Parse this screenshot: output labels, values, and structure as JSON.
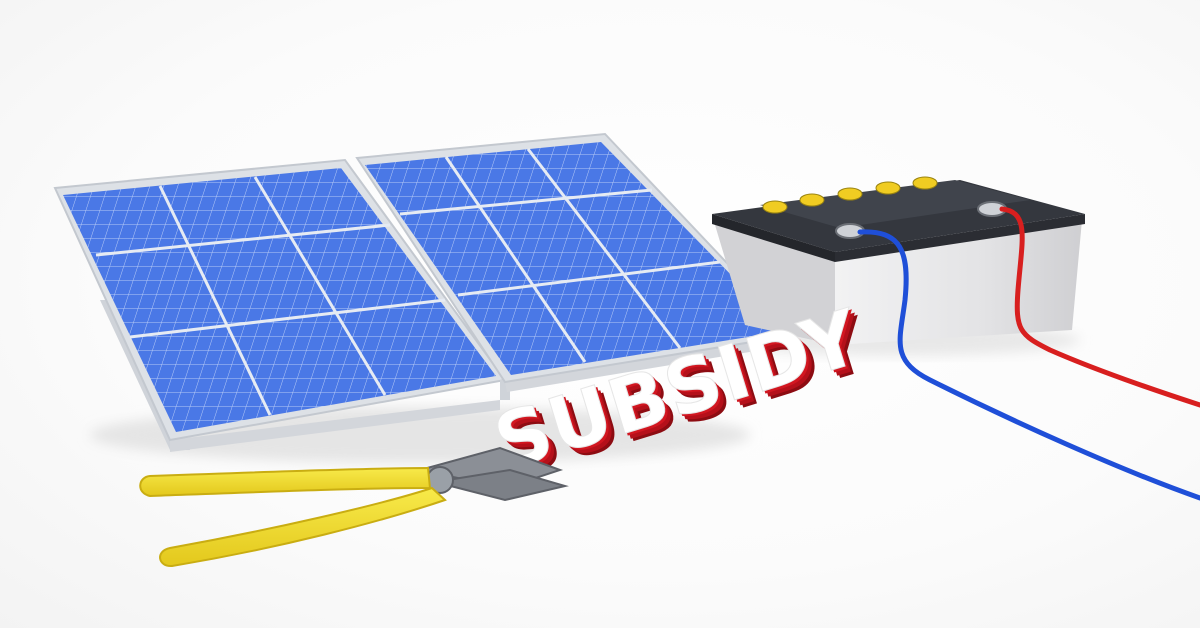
{
  "scene": {
    "word": "SUBSIDY",
    "objects": [
      "solar-panel",
      "solar-panel",
      "battery",
      "pliers",
      "blue-cable",
      "red-cable"
    ]
  },
  "colors": {
    "panel_cell": "#3f6fe0",
    "panel_frame": "#d9dde3",
    "battery_body": "#e4e4e6",
    "battery_lid": "#3a3d44",
    "battery_caps": "#f0cc22",
    "cable_negative": "#1f4fd8",
    "cable_positive": "#d81f1f",
    "word_face": "#ffffff",
    "word_side": "#c8121b",
    "pliers_handle": "#f3df2a",
    "pliers_metal": "#8b8f96"
  }
}
